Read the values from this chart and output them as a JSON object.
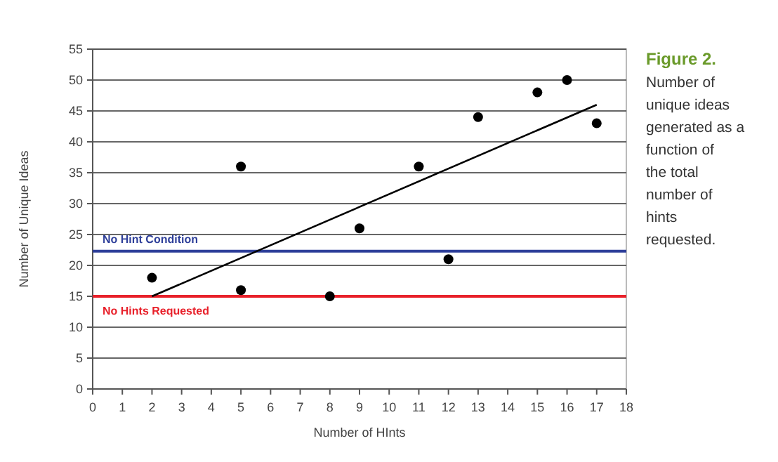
{
  "chart_data": {
    "type": "scatter",
    "title": "Figure 2.",
    "subtitle": "Number of unique ideas generated as a function of the total number of hints requested.",
    "xlabel": "Number of HInts",
    "ylabel": "Number of Unique Ideas",
    "xlim": [
      0,
      18
    ],
    "xticks": [
      0,
      1,
      2,
      3,
      4,
      5,
      6,
      7,
      8,
      9,
      10,
      11,
      12,
      13,
      14,
      15,
      16,
      17,
      18
    ],
    "ylim": [
      0,
      55
    ],
    "yticks": [
      0,
      5,
      10,
      15,
      20,
      25,
      30,
      35,
      40,
      45,
      50,
      55
    ],
    "grid": "y",
    "marker": "circle",
    "series": [
      {
        "color": "#000000",
        "x": [
          2,
          5,
          5,
          8,
          9,
          11,
          12,
          13,
          15,
          16,
          17
        ],
        "values": [
          18,
          36,
          16,
          15,
          26,
          36,
          21,
          44,
          48,
          50,
          43
        ]
      },
      {
        "type": "line",
        "color": "#000000",
        "marker": "none",
        "x": [
          2,
          17
        ],
        "values": [
          15,
          46
        ]
      }
    ],
    "ref_lines": [
      {
        "axis": "y",
        "value": 22.3,
        "label": "No Hint Condition",
        "color": "#2e3f9a"
      },
      {
        "axis": "y",
        "value": 15,
        "label": "No Hints Requested",
        "color": "#e8202a"
      }
    ]
  }
}
